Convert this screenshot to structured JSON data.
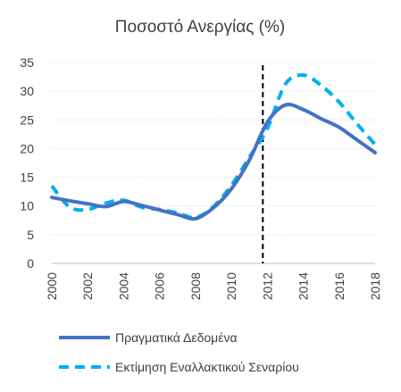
{
  "chart_data": {
    "type": "line",
    "title": "Ποσοστό Ανεργίας (%)",
    "xlabel": "",
    "ylabel": "",
    "x": [
      2000,
      2001,
      2002,
      2003,
      2004,
      2005,
      2006,
      2007,
      2008,
      2009,
      2010,
      2011,
      2012,
      2013,
      2014,
      2015,
      2016,
      2017,
      2018
    ],
    "x_tick_labels": [
      "2000",
      "2002",
      "2004",
      "2006",
      "2008",
      "2010",
      "2012",
      "2014",
      "2016",
      "2018"
    ],
    "ylim": [
      0,
      35
    ],
    "y_tick_labels": [
      "0",
      "5",
      "10",
      "15",
      "20",
      "25",
      "30",
      "35"
    ],
    "grid": "horizontal",
    "legend_position": "bottom",
    "vertical_marker_x": 2011.75,
    "series": [
      {
        "name": "Πραγματικά Δεδομένα",
        "color": "#4472c4",
        "style": "solid",
        "values": [
          11.5,
          10.9,
          10.4,
          9.9,
          10.8,
          10.1,
          9.3,
          8.5,
          7.8,
          9.7,
          13.0,
          18.0,
          24.6,
          27.6,
          26.8,
          25.2,
          23.7,
          21.5,
          19.3
        ]
      },
      {
        "name": "Εκτίμηση Εναλλακτικού Σεναρίου",
        "color": "#00b0f0",
        "style": "dashed",
        "values": [
          13.5,
          9.8,
          9.4,
          10.5,
          11.0,
          9.8,
          9.4,
          8.8,
          8.0,
          9.9,
          13.6,
          18.5,
          23.5,
          31.2,
          32.8,
          31.0,
          28.1,
          24.3,
          20.7
        ]
      }
    ]
  }
}
